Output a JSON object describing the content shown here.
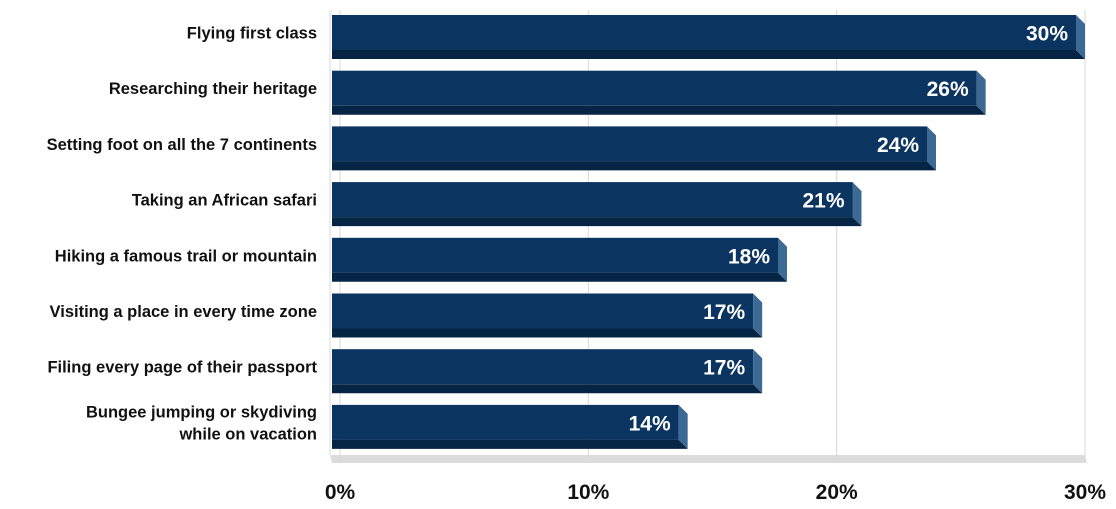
{
  "chart_data": {
    "type": "bar",
    "orientation": "horizontal",
    "categories": [
      "Flying first class",
      "Researching their heritage",
      "Setting foot on all the 7 continents",
      "Taking an African safari",
      "Hiking a famous trail or mountain",
      "Visiting a place in every time zone",
      "Filing every page of their passport",
      "Bungee jumping or skydiving while on vacation"
    ],
    "category_lines": [
      [
        "Flying first class"
      ],
      [
        "Researching their heritage"
      ],
      [
        "Setting foot on all the 7 continents"
      ],
      [
        "Taking an African safari"
      ],
      [
        "Hiking a famous trail or mountain"
      ],
      [
        "Visiting a place in every time zone"
      ],
      [
        "Filing every page of their passport"
      ],
      [
        "Bungee jumping or skydiving",
        "while on vacation"
      ]
    ],
    "values": [
      30,
      26,
      24,
      21,
      18,
      17,
      17,
      14
    ],
    "data_labels": [
      "30%",
      "26%",
      "24%",
      "21%",
      "18%",
      "17%",
      "17%",
      "14%"
    ],
    "xlim": [
      0,
      30
    ],
    "x_ticks": [
      0,
      10,
      20,
      30
    ],
    "x_tick_labels": [
      "0%",
      "10%",
      "20%",
      "30%"
    ],
    "grid": true,
    "legend": "none",
    "colors": {
      "bar_front": "#0b3461",
      "bar_side": "#3d6a94",
      "bar_bottom": "#062443",
      "grid": "#d9d9d9",
      "floor": "#dcdcdc"
    }
  }
}
